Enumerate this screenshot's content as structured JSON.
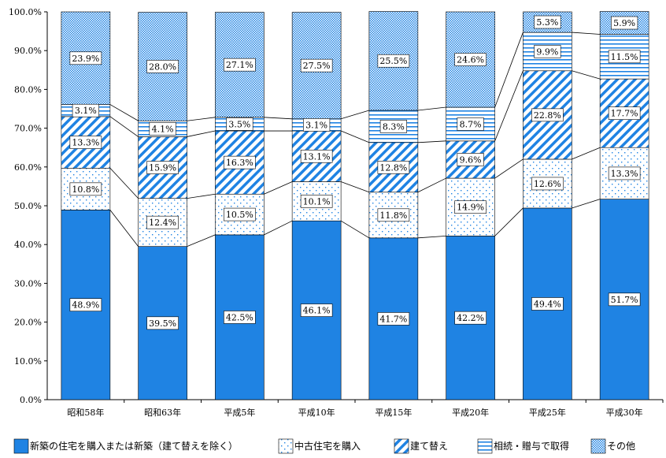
{
  "chart_data": {
    "type": "bar",
    "stacked": true,
    "percent_stacked": true,
    "categories": [
      "昭和58年",
      "昭和63年",
      "平成5年",
      "平成10年",
      "平成15年",
      "平成20年",
      "平成25年",
      "平成30年"
    ],
    "series": [
      {
        "name": "新築の住宅を購入または新築（建て替えを除く）",
        "values": [
          48.9,
          39.5,
          42.5,
          46.1,
          41.7,
          42.2,
          49.4,
          51.7
        ],
        "labels": [
          "48.9%",
          "39.5%",
          "42.5%",
          "46.1%",
          "41.7%",
          "42.2%",
          "49.4%",
          "51.7%"
        ],
        "color": "#1f83e3",
        "pattern": "solid"
      },
      {
        "name": "中古住宅を購入",
        "values": [
          10.8,
          12.4,
          10.5,
          10.1,
          11.8,
          14.9,
          12.6,
          13.3
        ],
        "labels": [
          "10.8%",
          "12.4%",
          "10.5%",
          "10.1%",
          "11.8%",
          "14.9%",
          "12.6%",
          "13.3%"
        ],
        "color": "#1f83e3",
        "pattern": "dots"
      },
      {
        "name": "建て替え",
        "values": [
          13.3,
          15.9,
          16.3,
          13.1,
          12.8,
          9.6,
          22.8,
          17.7
        ],
        "labels": [
          "13.3%",
          "15.9%",
          "16.3%",
          "13.1%",
          "12.8%",
          "9.6%",
          "22.8%",
          "17.7%"
        ],
        "color": "#1f83e3",
        "pattern": "diagonal"
      },
      {
        "name": "相続・贈与で取得",
        "values": [
          3.1,
          4.1,
          3.5,
          3.1,
          8.3,
          8.7,
          9.9,
          11.5
        ],
        "labels": [
          "3.1%",
          "4.1%",
          "3.5%",
          "3.1%",
          "8.3%",
          "8.7%",
          "9.9%",
          "11.5%"
        ],
        "color": "#1f83e3",
        "pattern": "horizontal"
      },
      {
        "name": "その他",
        "values": [
          23.9,
          28.0,
          27.1,
          27.5,
          25.5,
          24.6,
          5.3,
          5.9
        ],
        "labels": [
          "23.9%",
          "28.0%",
          "27.1%",
          "27.5%",
          "25.5%",
          "24.6%",
          "5.3%",
          "5.9%"
        ],
        "color": "#1f83e3",
        "pattern": "checker"
      }
    ],
    "ylim": [
      0,
      100
    ],
    "yticks": [
      "0.0%",
      "10.0%",
      "20.0%",
      "30.0%",
      "40.0%",
      "50.0%",
      "60.0%",
      "70.0%",
      "80.0%",
      "90.0%",
      "100.0%"
    ],
    "title": "",
    "xlabel": "",
    "ylabel": "",
    "grid": false,
    "legend": "bottom",
    "connector_lines": true
  }
}
